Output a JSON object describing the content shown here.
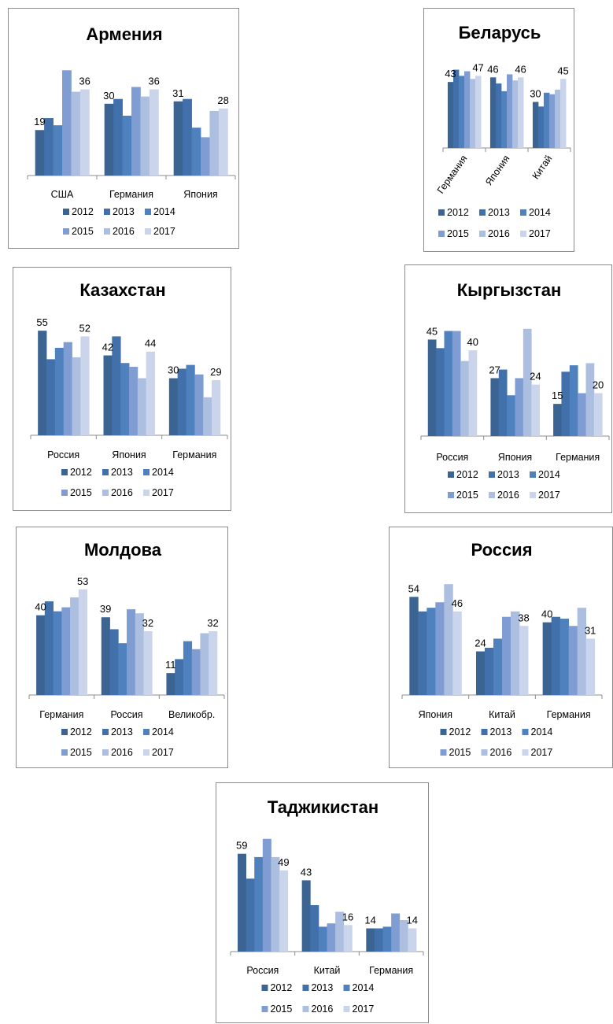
{
  "legend": {
    "years": [
      "2012",
      "2013",
      "2014",
      "2015",
      "2016",
      "2017"
    ],
    "colors": [
      "#3c6493",
      "#4170ab",
      "#4e81bd",
      "#7f9cd3",
      "#adbfe0",
      "#cad4eb"
    ]
  },
  "chart_data": [
    {
      "type": "bar",
      "title": "Армения",
      "categories": [
        "США",
        "Германия",
        "Япония"
      ],
      "series": [
        {
          "name": "2012",
          "values": [
            19,
            30,
            31
          ]
        },
        {
          "name": "2013",
          "values": [
            24,
            32,
            32
          ]
        },
        {
          "name": "2014",
          "values": [
            21,
            25,
            20
          ]
        },
        {
          "name": "2015",
          "values": [
            44,
            37,
            16
          ]
        },
        {
          "name": "2016",
          "values": [
            35,
            33,
            27
          ]
        },
        {
          "name": "2017",
          "values": [
            36,
            36,
            28
          ]
        }
      ],
      "data_labels": [
        {
          "category": 0,
          "series": 0,
          "text": "19"
        },
        {
          "category": 0,
          "series": 5,
          "text": "36"
        },
        {
          "category": 1,
          "series": 0,
          "text": "30"
        },
        {
          "category": 1,
          "series": 5,
          "text": "36"
        },
        {
          "category": 2,
          "series": 0,
          "text": "31"
        },
        {
          "category": 2,
          "series": 5,
          "text": "28"
        }
      ],
      "ylim": [
        0,
        50
      ],
      "legend": "bottom",
      "grid": false,
      "xlabel_rotation": 0
    },
    {
      "type": "bar",
      "title": "Беларусь",
      "categories": [
        "Германия",
        "Япония",
        "Китай"
      ],
      "series": [
        {
          "name": "2012",
          "values": [
            43,
            46,
            30
          ]
        },
        {
          "name": "2013",
          "values": [
            51,
            42,
            27
          ]
        },
        {
          "name": "2014",
          "values": [
            47,
            37,
            36
          ]
        },
        {
          "name": "2015",
          "values": [
            50,
            48,
            35
          ]
        },
        {
          "name": "2016",
          "values": [
            45,
            44,
            38
          ]
        },
        {
          "name": "2017",
          "values": [
            47,
            46,
            45
          ]
        }
      ],
      "data_labels": [
        {
          "category": 0,
          "series": 0,
          "text": "43"
        },
        {
          "category": 0,
          "series": 5,
          "text": "47"
        },
        {
          "category": 1,
          "series": 0,
          "text": "46"
        },
        {
          "category": 1,
          "series": 5,
          "text": "46"
        },
        {
          "category": 2,
          "series": 0,
          "text": "30"
        },
        {
          "category": 2,
          "series": 5,
          "text": "45"
        }
      ],
      "ylim": [
        0,
        60
      ],
      "legend": "bottom",
      "grid": false,
      "xlabel_rotation": -55
    },
    {
      "type": "bar",
      "title": "Казахстан",
      "categories": [
        "Россия",
        "Япония",
        "Германия"
      ],
      "series": [
        {
          "name": "2012",
          "values": [
            55,
            42,
            30
          ]
        },
        {
          "name": "2013",
          "values": [
            40,
            52,
            35
          ]
        },
        {
          "name": "2014",
          "values": [
            46,
            38,
            37
          ]
        },
        {
          "name": "2015",
          "values": [
            49,
            36,
            32
          ]
        },
        {
          "name": "2016",
          "values": [
            41,
            30,
            20
          ]
        },
        {
          "name": "2017",
          "values": [
            52,
            44,
            29
          ]
        }
      ],
      "data_labels": [
        {
          "category": 0,
          "series": 0,
          "text": "55"
        },
        {
          "category": 0,
          "series": 5,
          "text": "52"
        },
        {
          "category": 1,
          "series": 0,
          "text": "42"
        },
        {
          "category": 1,
          "series": 5,
          "text": "44"
        },
        {
          "category": 2,
          "series": 0,
          "text": "30"
        },
        {
          "category": 2,
          "series": 5,
          "text": "29"
        }
      ],
      "ylim": [
        0,
        65
      ],
      "legend": "bottom",
      "grid": false,
      "xlabel_rotation": 0
    },
    {
      "type": "bar",
      "title": "Кыргызстан",
      "categories": [
        "Россия",
        "Япония",
        "Германия"
      ],
      "series": [
        {
          "name": "2012",
          "values": [
            45,
            27,
            15
          ]
        },
        {
          "name": "2013",
          "values": [
            41,
            31,
            30
          ]
        },
        {
          "name": "2014",
          "values": [
            49,
            19,
            33
          ]
        },
        {
          "name": "2015",
          "values": [
            49,
            27,
            20
          ]
        },
        {
          "name": "2016",
          "values": [
            35,
            50,
            34
          ]
        },
        {
          "name": "2017",
          "values": [
            40,
            24,
            20
          ]
        }
      ],
      "data_labels": [
        {
          "category": 0,
          "series": 0,
          "text": "45"
        },
        {
          "category": 0,
          "series": 5,
          "text": "40"
        },
        {
          "category": 1,
          "series": 0,
          "text": "27"
        },
        {
          "category": 1,
          "series": 5,
          "text": "24"
        },
        {
          "category": 2,
          "series": 0,
          "text": "15"
        },
        {
          "category": 2,
          "series": 5,
          "text": "20"
        }
      ],
      "ylim": [
        0,
        58
      ],
      "legend": "bottom",
      "grid": false,
      "xlabel_rotation": 0
    },
    {
      "type": "bar",
      "title": "Молдова",
      "categories": [
        "Германия",
        "Россия",
        "Великобр."
      ],
      "series": [
        {
          "name": "2012",
          "values": [
            40,
            39,
            11
          ]
        },
        {
          "name": "2013",
          "values": [
            47,
            33,
            18
          ]
        },
        {
          "name": "2014",
          "values": [
            42,
            26,
            27
          ]
        },
        {
          "name": "2015",
          "values": [
            44,
            43,
            23
          ]
        },
        {
          "name": "2016",
          "values": [
            49,
            41,
            31
          ]
        },
        {
          "name": "2017",
          "values": [
            53,
            32,
            32
          ]
        }
      ],
      "data_labels": [
        {
          "category": 0,
          "series": 0,
          "text": "40"
        },
        {
          "category": 0,
          "series": 5,
          "text": "53"
        },
        {
          "category": 1,
          "series": 0,
          "text": "39"
        },
        {
          "category": 1,
          "series": 5,
          "text": "32"
        },
        {
          "category": 2,
          "series": 0,
          "text": "11"
        },
        {
          "category": 2,
          "series": 5,
          "text": "32"
        }
      ],
      "ylim": [
        0,
        62
      ],
      "legend": "bottom",
      "grid": false,
      "xlabel_rotation": 0
    },
    {
      "type": "bar",
      "title": "Россия",
      "categories": [
        "Япония",
        "Китай",
        "Германия"
      ],
      "series": [
        {
          "name": "2012",
          "values": [
            54,
            24,
            40
          ]
        },
        {
          "name": "2013",
          "values": [
            46,
            26,
            43
          ]
        },
        {
          "name": "2014",
          "values": [
            48,
            31,
            42
          ]
        },
        {
          "name": "2015",
          "values": [
            51,
            43,
            38
          ]
        },
        {
          "name": "2016",
          "values": [
            61,
            46,
            48
          ]
        },
        {
          "name": "2017",
          "values": [
            46,
            38,
            31
          ]
        }
      ],
      "data_labels": [
        {
          "category": 0,
          "series": 0,
          "text": "54"
        },
        {
          "category": 0,
          "series": 5,
          "text": "46"
        },
        {
          "category": 1,
          "series": 0,
          "text": "24"
        },
        {
          "category": 1,
          "series": 5,
          "text": "38"
        },
        {
          "category": 2,
          "series": 0,
          "text": "40"
        },
        {
          "category": 2,
          "series": 5,
          "text": "31"
        }
      ],
      "ylim": [
        0,
        68
      ],
      "legend": "bottom",
      "grid": false,
      "xlabel_rotation": 0
    },
    {
      "type": "bar",
      "title": "Таджикистан",
      "categories": [
        "Россия",
        "Китай",
        "Германия"
      ],
      "series": [
        {
          "name": "2012",
          "values": [
            59,
            43,
            14
          ]
        },
        {
          "name": "2013",
          "values": [
            44,
            28,
            14
          ]
        },
        {
          "name": "2014",
          "values": [
            57,
            15,
            15
          ]
        },
        {
          "name": "2015",
          "values": [
            68,
            17,
            23
          ]
        },
        {
          "name": "2016",
          "values": [
            57,
            24,
            19
          ]
        },
        {
          "name": "2017",
          "values": [
            49,
            16,
            14
          ]
        }
      ],
      "data_labels": [
        {
          "category": 0,
          "series": 0,
          "text": "59"
        },
        {
          "category": 0,
          "series": 5,
          "text": "49"
        },
        {
          "category": 1,
          "series": 0,
          "text": "43"
        },
        {
          "category": 1,
          "series": 5,
          "text": "16"
        },
        {
          "category": 2,
          "series": 0,
          "text": "14"
        },
        {
          "category": 2,
          "series": 5,
          "text": "14"
        }
      ],
      "ylim": [
        0,
        75
      ],
      "legend": "bottom",
      "grid": false,
      "xlabel_rotation": 0
    }
  ]
}
